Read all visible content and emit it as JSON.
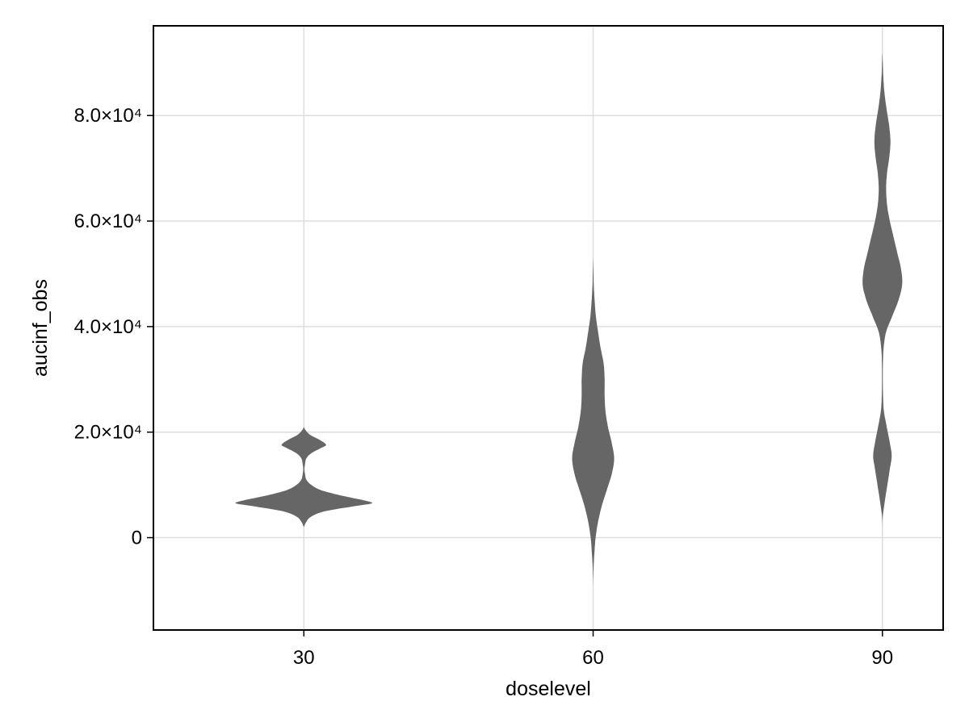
{
  "chart_data": {
    "type": "violin",
    "xlabel": "doselevel",
    "ylabel": "aucinf_obs",
    "categories": [
      "30",
      "60",
      "90"
    ],
    "x": [
      30,
      60,
      90
    ],
    "xlim": [
      14.4,
      96.3
    ],
    "ylim": [
      -17500,
      97000
    ],
    "xticks": [
      {
        "value": 30,
        "label": "30"
      },
      {
        "value": 60,
        "label": "60"
      },
      {
        "value": 90,
        "label": "90"
      }
    ],
    "yticks": [
      {
        "value": 0,
        "label": "0"
      },
      {
        "value": 20000,
        "label": "2.0×10⁴"
      },
      {
        "value": 40000,
        "label": "4.0×10⁴"
      },
      {
        "value": 60000,
        "label": "6.0×10⁴"
      },
      {
        "value": 80000,
        "label": "8.0×10⁴"
      }
    ],
    "grid": true,
    "fill_color": "#666666",
    "violins": [
      {
        "category": "30",
        "x": 30,
        "profile": [
          [
            2000,
            0
          ],
          [
            3000,
            0.02
          ],
          [
            4000,
            0.06
          ],
          [
            5000,
            0.17
          ],
          [
            6000,
            0.42
          ],
          [
            6500,
            0.55
          ],
          [
            7000,
            0.5
          ],
          [
            8000,
            0.3
          ],
          [
            9000,
            0.14
          ],
          [
            10000,
            0.06
          ],
          [
            11000,
            0.02
          ],
          [
            12000,
            0.01
          ],
          [
            13000,
            0.005
          ],
          [
            14000,
            0.01
          ],
          [
            15000,
            0.02
          ],
          [
            16000,
            0.06
          ],
          [
            17000,
            0.14
          ],
          [
            17600,
            0.18
          ],
          [
            18500,
            0.13
          ],
          [
            19500,
            0.05
          ],
          [
            20500,
            0.01
          ],
          [
            21000,
            0
          ]
        ]
      },
      {
        "category": "60",
        "x": 60,
        "profile": [
          [
            -9000,
            0
          ],
          [
            -6000,
            0.003
          ],
          [
            -3000,
            0.01
          ],
          [
            0,
            0.02
          ],
          [
            3000,
            0.04
          ],
          [
            6000,
            0.07
          ],
          [
            9000,
            0.11
          ],
          [
            12000,
            0.15
          ],
          [
            15000,
            0.17
          ],
          [
            18000,
            0.15
          ],
          [
            21000,
            0.12
          ],
          [
            24000,
            0.1
          ],
          [
            27000,
            0.093
          ],
          [
            30000,
            0.093
          ],
          [
            33000,
            0.085
          ],
          [
            36000,
            0.06
          ],
          [
            39000,
            0.04
          ],
          [
            42000,
            0.022
          ],
          [
            45000,
            0.012
          ],
          [
            48000,
            0.005
          ],
          [
            51000,
            0.002
          ],
          [
            53000,
            0
          ]
        ]
      },
      {
        "category": "90",
        "x": 90,
        "profile": [
          [
            2000,
            0
          ],
          [
            4000,
            0.003
          ],
          [
            7000,
            0.02
          ],
          [
            10000,
            0.04
          ],
          [
            13000,
            0.06
          ],
          [
            15500,
            0.075
          ],
          [
            18000,
            0.06
          ],
          [
            21000,
            0.035
          ],
          [
            24000,
            0.012
          ],
          [
            27000,
            0.005
          ],
          [
            30000,
            0.003
          ],
          [
            33000,
            0.004
          ],
          [
            36000,
            0.01
          ],
          [
            39000,
            0.03
          ],
          [
            42000,
            0.08
          ],
          [
            45000,
            0.13
          ],
          [
            48000,
            0.16
          ],
          [
            51000,
            0.15
          ],
          [
            54000,
            0.12
          ],
          [
            57000,
            0.09
          ],
          [
            60000,
            0.06
          ],
          [
            63000,
            0.038
          ],
          [
            66000,
            0.03
          ],
          [
            69000,
            0.037
          ],
          [
            72000,
            0.055
          ],
          [
            75000,
            0.065
          ],
          [
            78000,
            0.055
          ],
          [
            81000,
            0.035
          ],
          [
            84000,
            0.018
          ],
          [
            87000,
            0.008
          ],
          [
            90000,
            0.003
          ],
          [
            92000,
            0
          ]
        ]
      }
    ]
  }
}
